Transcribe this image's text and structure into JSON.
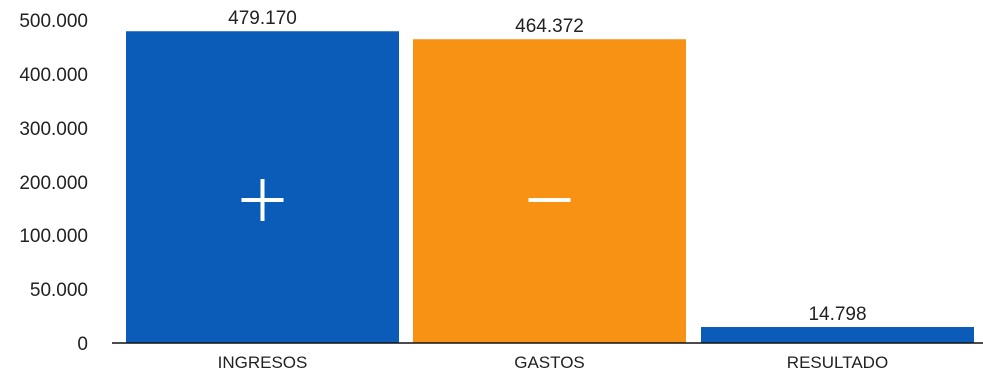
{
  "chart_data": {
    "type": "bar",
    "title": "",
    "xlabel": "",
    "ylabel": "",
    "ylim": [
      0,
      500000
    ],
    "grid": false,
    "legend": "none",
    "categories": [
      "INGRESOS",
      "GASTOS",
      "RESULTADO"
    ],
    "values": [
      479170,
      464372,
      14798
    ],
    "value_labels": [
      "479.170",
      "464.372",
      "14.798"
    ],
    "bar_colors": [
      "#0a5cb8",
      "#f79214",
      "#0a5cb8"
    ],
    "bar_symbols": [
      "+",
      "—",
      ""
    ],
    "yticks": [
      {
        "value": 0,
        "label": "0"
      },
      {
        "value": 50000,
        "label": "50.000"
      },
      {
        "value": 100000,
        "label": "100.000"
      },
      {
        "value": 200000,
        "label": "200.000"
      },
      {
        "value": 300000,
        "label": "300.000"
      },
      {
        "value": 400000,
        "label": "400.000"
      },
      {
        "value": 500000,
        "label": "500.000"
      }
    ]
  }
}
